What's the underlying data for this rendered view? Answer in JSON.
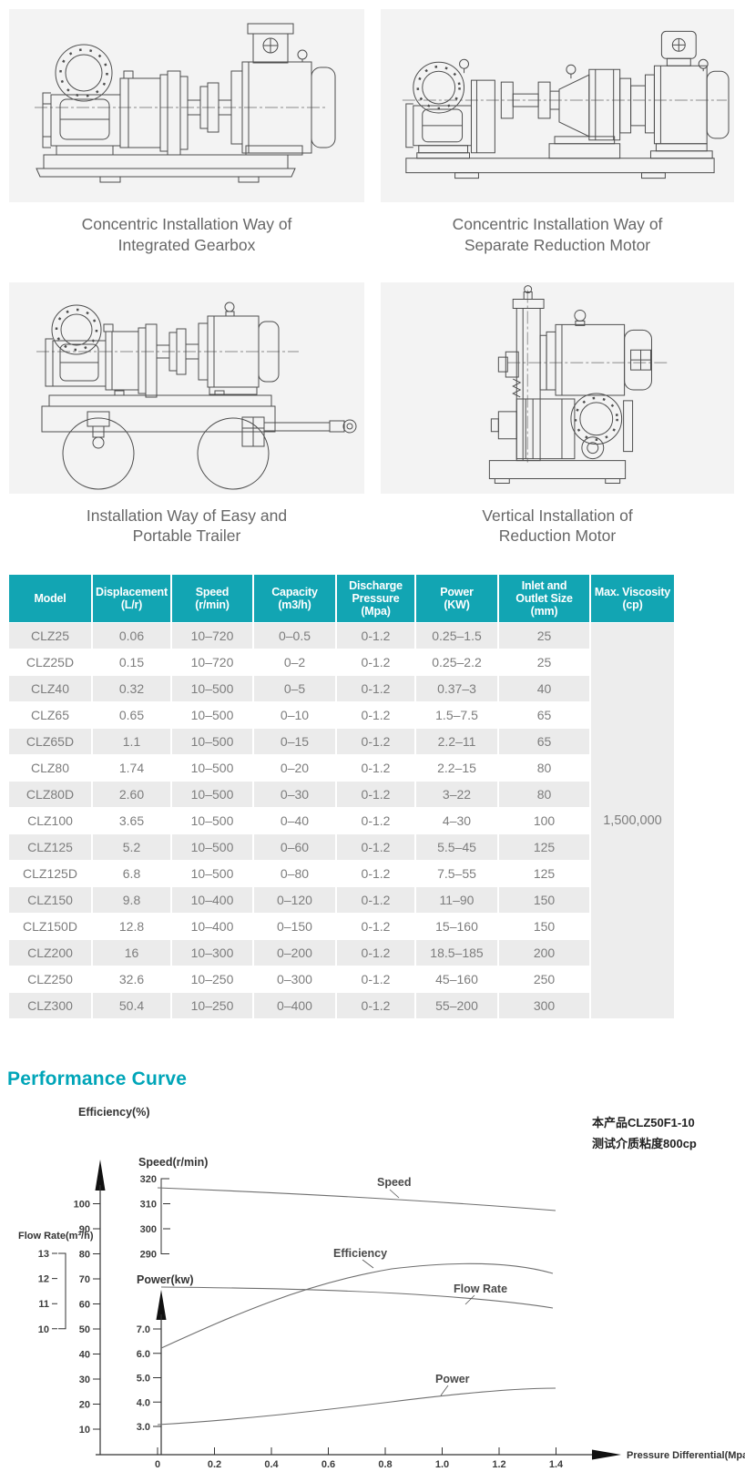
{
  "figures": [
    {
      "caption": "Concentric Installation Way of\nIntegrated Gearbox"
    },
    {
      "caption": "Concentric Installation Way of\nSeparate Reduction Motor"
    },
    {
      "caption": "Installation Way of Easy and\nPortable Trailer"
    },
    {
      "caption": "Vertical Installation of\nReduction Motor"
    }
  ],
  "spec_table": {
    "headers": [
      "Model",
      "Displacement\n(L/r)",
      "Speed\n(r/min)",
      "Capacity\n(m3/h)",
      "Discharge\nPressure\n(Mpa)",
      "Power\n(KW)",
      "Inlet and\nOutlet Size\n(mm)",
      "Max. Viscosity\n(cp)"
    ],
    "rows": [
      [
        "CLZ25",
        "0.06",
        "10–720",
        "0–0.5",
        "0-1.2",
        "0.25–1.5",
        "25"
      ],
      [
        "CLZ25D",
        "0.15",
        "10–720",
        "0–2",
        "0-1.2",
        "0.25–2.2",
        "25"
      ],
      [
        "CLZ40",
        "0.32",
        "10–500",
        "0–5",
        "0-1.2",
        "0.37–3",
        "40"
      ],
      [
        "CLZ65",
        "0.65",
        "10–500",
        "0–10",
        "0-1.2",
        "1.5–7.5",
        "65"
      ],
      [
        "CLZ65D",
        "1.1",
        "10–500",
        "0–15",
        "0-1.2",
        "2.2–11",
        "65"
      ],
      [
        "CLZ80",
        "1.74",
        "10–500",
        "0–20",
        "0-1.2",
        "2.2–15",
        "80"
      ],
      [
        "CLZ80D",
        "2.60",
        "10–500",
        "0–30",
        "0-1.2",
        "3–22",
        "80"
      ],
      [
        "CLZ100",
        "3.65",
        "10–500",
        "0–40",
        "0-1.2",
        "4–30",
        "100"
      ],
      [
        "CLZ125",
        "5.2",
        "10–500",
        "0–60",
        "0-1.2",
        "5.5–45",
        "125"
      ],
      [
        "CLZ125D",
        "6.8",
        "10–500",
        "0–80",
        "0-1.2",
        "7.5–55",
        "125"
      ],
      [
        "CLZ150",
        "9.8",
        "10–400",
        "0–120",
        "0-1.2",
        "11–90",
        "150"
      ],
      [
        "CLZ150D",
        "12.8",
        "10–400",
        "0–150",
        "0-1.2",
        "15–160",
        "150"
      ],
      [
        "CLZ200",
        "16",
        "10–300",
        "0–200",
        "0-1.2",
        "18.5–185",
        "200"
      ],
      [
        "CLZ250",
        "32.6",
        "10–250",
        "0–300",
        "0-1.2",
        "45–160",
        "250"
      ],
      [
        "CLZ300",
        "50.4",
        "10–250",
        "0–400",
        "0-1.2",
        "55–200",
        "300"
      ]
    ],
    "max_viscosity": "1,500,000"
  },
  "section_title": "Performance Curve",
  "colors": {
    "header_teal": "#12a5b3",
    "title_teal": "#00a5b8",
    "row_gray": "#ebebeb",
    "panel_gray": "#f3f3f3",
    "text_gray": "#7d7d7d"
  },
  "chart_data": {
    "type": "line",
    "title": "Performance Curve",
    "annotation": [
      "本产品CLZ50F1-10",
      "测试介质粘度800cp"
    ],
    "xlabel": "Pressure Differential(Mpa)",
    "x_ticks": [
      "0",
      "0.2",
      "0.4",
      "0.6",
      "0.8",
      "1.0",
      "1.2",
      "1.4"
    ],
    "xlim": [
      0,
      1.4
    ],
    "grid": false,
    "axes": {
      "efficiency": {
        "label": "Efficiency(%)",
        "ticks": [
          "100",
          "90",
          "80",
          "70",
          "60",
          "50",
          "40",
          "30",
          "20",
          "10"
        ],
        "range": [
          10,
          100
        ]
      },
      "flow_rate": {
        "label": "Flow Rate(m³/h)",
        "ticks": [
          "13",
          "12",
          "11",
          "10"
        ],
        "range": [
          10,
          13
        ]
      },
      "speed": {
        "label": "Speed(r/min)",
        "ticks": [
          "320",
          "310",
          "300",
          "290"
        ],
        "range": [
          290,
          320
        ]
      },
      "power": {
        "label": "Power(kw)",
        "ticks": [
          "7.0",
          "6.0",
          "5.0",
          "4.0",
          "3.0"
        ],
        "range": [
          3,
          7
        ]
      }
    },
    "series": [
      {
        "name": "Speed",
        "unit": "r/min",
        "x": [
          0,
          0.2,
          0.4,
          0.6,
          0.8,
          1.0,
          1.2,
          1.4
        ],
        "values": [
          316,
          315,
          314,
          312.5,
          311,
          310,
          308.5,
          307
        ]
      },
      {
        "name": "Efficiency",
        "unit": "%",
        "x": [
          0,
          0.2,
          0.4,
          0.6,
          0.8,
          1.0,
          1.2,
          1.4
        ],
        "values": [
          42,
          55,
          64.5,
          70.5,
          74,
          75.5,
          75,
          72.5
        ]
      },
      {
        "name": "Flow Rate",
        "unit": "m³/h",
        "x": [
          0,
          0.2,
          0.4,
          0.6,
          0.8,
          1.0,
          1.2,
          1.4
        ],
        "values": [
          11.7,
          11.6,
          11.5,
          11.45,
          11.3,
          11.15,
          11,
          10.8
        ]
      },
      {
        "name": "Power",
        "unit": "kw",
        "x": [
          0,
          0.2,
          0.4,
          0.6,
          0.8,
          1.0,
          1.2,
          1.4
        ],
        "values": [
          3.1,
          3.25,
          3.4,
          3.7,
          4.0,
          4.3,
          4.5,
          4.6
        ]
      }
    ]
  }
}
